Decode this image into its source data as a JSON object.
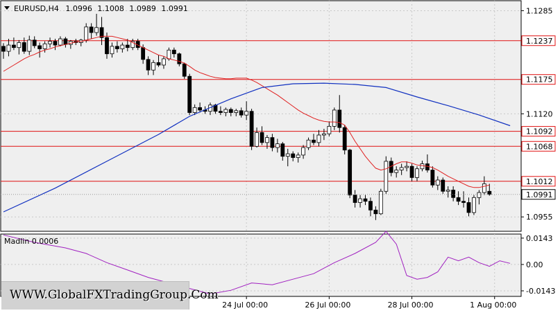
{
  "chart_data": {
    "type": "candlestick",
    "symbol_header": {
      "symbol": "EURUSD,H4",
      "open": "1.0996",
      "high": "1.1008",
      "low": "1.0989",
      "close": "1.0991"
    },
    "price_axis": {
      "ylim": [
        1.0932,
        1.1301
      ],
      "tick_labels": [
        "1.1285",
        "1.1120",
        "1.0955"
      ],
      "tick_values": [
        1.1285,
        1.112,
        1.0955
      ]
    },
    "horizontal_levels": [
      {
        "label": "1.1237",
        "value": 1.1237,
        "color": "#e01010"
      },
      {
        "label": "1.1175",
        "value": 1.1175,
        "color": "#e01010"
      },
      {
        "label": "1.1092",
        "value": 1.1092,
        "color": "#e01010"
      },
      {
        "label": "1.1068",
        "value": 1.1068,
        "color": "#e01010"
      },
      {
        "label": "1.1012",
        "value": 1.1012,
        "color": "#e01010"
      }
    ],
    "current_price": {
      "label": "1.0991",
      "value": 1.0991
    },
    "time_axis": {
      "labels": [
        "24 Jul 00:00",
        "26 Jul 00:00",
        "28 Jul 00:00",
        "1 Aug 00:00"
      ],
      "bar_index": [
        47,
        63,
        79,
        95
      ]
    },
    "candles": [
      [
        1.1228,
        1.1233,
        1.1208,
        1.122
      ],
      [
        1.122,
        1.124,
        1.1212,
        1.123
      ],
      [
        1.123,
        1.1242,
        1.1222,
        1.1226
      ],
      [
        1.1226,
        1.1238,
        1.1215,
        1.1234
      ],
      [
        1.1234,
        1.1242,
        1.1216,
        1.122
      ],
      [
        1.122,
        1.1245,
        1.1214,
        1.1238
      ],
      [
        1.1238,
        1.1244,
        1.1225,
        1.1229
      ],
      [
        1.1229,
        1.1234,
        1.121,
        1.1224
      ],
      [
        1.1224,
        1.1236,
        1.1218,
        1.1232
      ],
      [
        1.1232,
        1.1242,
        1.1226,
        1.1236
      ],
      [
        1.1236,
        1.124,
        1.1222,
        1.123
      ],
      [
        1.123,
        1.1244,
        1.1228,
        1.124
      ],
      [
        1.124,
        1.1243,
        1.1226,
        1.1231
      ],
      [
        1.1231,
        1.1238,
        1.1224,
        1.1236
      ],
      [
        1.1236,
        1.124,
        1.123,
        1.1234
      ],
      [
        1.1234,
        1.124,
        1.1228,
        1.1238
      ],
      [
        1.1238,
        1.1265,
        1.1234,
        1.1259
      ],
      [
        1.1259,
        1.1265,
        1.124,
        1.125
      ],
      [
        1.125,
        1.128,
        1.1245,
        1.1258
      ],
      [
        1.1258,
        1.1275,
        1.123,
        1.1242
      ],
      [
        1.1242,
        1.125,
        1.1208,
        1.1216
      ],
      [
        1.1216,
        1.1234,
        1.121,
        1.1228
      ],
      [
        1.1228,
        1.1236,
        1.1218,
        1.1224
      ],
      [
        1.1224,
        1.1234,
        1.1218,
        1.123
      ],
      [
        1.123,
        1.124,
        1.122,
        1.1226
      ],
      [
        1.1226,
        1.124,
        1.1222,
        1.1236
      ],
      [
        1.1236,
        1.124,
        1.1222,
        1.1226
      ],
      [
        1.1226,
        1.1231,
        1.12,
        1.1207
      ],
      [
        1.1207,
        1.1212,
        1.1182,
        1.119
      ],
      [
        1.119,
        1.1206,
        1.1182,
        1.1202
      ],
      [
        1.1202,
        1.1214,
        1.1195,
        1.1198
      ],
      [
        1.1198,
        1.1212,
        1.1192,
        1.1208
      ],
      [
        1.1208,
        1.1226,
        1.1205,
        1.1222
      ],
      [
        1.1222,
        1.1226,
        1.121,
        1.1216
      ],
      [
        1.1216,
        1.1218,
        1.1196,
        1.12
      ],
      [
        1.12,
        1.1202,
        1.1176,
        1.118
      ],
      [
        1.118,
        1.1184,
        1.1118,
        1.1122
      ],
      [
        1.1122,
        1.1135,
        1.1118,
        1.113
      ],
      [
        1.113,
        1.1138,
        1.1122,
        1.1126
      ],
      [
        1.1126,
        1.1132,
        1.112,
        1.1124
      ],
      [
        1.1124,
        1.1138,
        1.1118,
        1.1134
      ],
      [
        1.1134,
        1.1136,
        1.112,
        1.1124
      ],
      [
        1.1124,
        1.1132,
        1.1118,
        1.1122
      ],
      [
        1.1122,
        1.113,
        1.1116,
        1.1127
      ],
      [
        1.1127,
        1.113,
        1.1116,
        1.1122
      ],
      [
        1.1122,
        1.1128,
        1.1116,
        1.1125
      ],
      [
        1.1125,
        1.113,
        1.1114,
        1.1118
      ],
      [
        1.1118,
        1.114,
        1.111,
        1.1124
      ],
      [
        1.1124,
        1.1128,
        1.1062,
        1.1068
      ],
      [
        1.1068,
        1.1098,
        1.1066,
        1.109
      ],
      [
        1.109,
        1.11,
        1.107,
        1.1074
      ],
      [
        1.1074,
        1.1086,
        1.1064,
        1.1082
      ],
      [
        1.1082,
        1.1088,
        1.106,
        1.1066
      ],
      [
        1.1066,
        1.108,
        1.1058,
        1.1072
      ],
      [
        1.1072,
        1.1075,
        1.1045,
        1.1052
      ],
      [
        1.1052,
        1.1064,
        1.1036,
        1.1056
      ],
      [
        1.1056,
        1.106,
        1.1044,
        1.105
      ],
      [
        1.105,
        1.1058,
        1.1042,
        1.1054
      ],
      [
        1.1054,
        1.107,
        1.1048,
        1.1066
      ],
      [
        1.1066,
        1.1082,
        1.1062,
        1.1078
      ],
      [
        1.1078,
        1.1088,
        1.107,
        1.1074
      ],
      [
        1.1074,
        1.1094,
        1.1068,
        1.1086
      ],
      [
        1.1086,
        1.1096,
        1.1078,
        1.1088
      ],
      [
        1.1088,
        1.1108,
        1.1084,
        1.11
      ],
      [
        1.11,
        1.113,
        1.1094,
        1.1126
      ],
      [
        1.1126,
        1.115,
        1.109,
        1.1098
      ],
      [
        1.1098,
        1.1102,
        1.1055,
        1.1062
      ],
      [
        1.1062,
        1.1064,
        1.0985,
        1.099
      ],
      [
        1.099,
        1.0998,
        1.097,
        1.0978
      ],
      [
        1.0978,
        1.099,
        1.097,
        1.0984
      ],
      [
        1.0984,
        1.099,
        1.0974,
        1.098
      ],
      [
        1.098,
        1.0986,
        1.0956,
        1.0966
      ],
      [
        1.0966,
        1.0972,
        1.095,
        1.096
      ],
      [
        1.096,
        1.1,
        1.0958,
        1.0996
      ],
      [
        1.0996,
        1.1052,
        1.0992,
        1.1044
      ],
      [
        1.1044,
        1.105,
        1.102,
        1.1026
      ],
      [
        1.1026,
        1.1036,
        1.1018,
        1.103
      ],
      [
        1.103,
        1.104,
        1.1022,
        1.1034
      ],
      [
        1.1034,
        1.1044,
        1.1028,
        1.1036
      ],
      [
        1.1036,
        1.104,
        1.1012,
        1.1018
      ],
      [
        1.1018,
        1.1036,
        1.1012,
        1.1032
      ],
      [
        1.1032,
        1.1045,
        1.1028,
        1.104
      ],
      [
        1.104,
        1.1055,
        1.1026,
        1.103
      ],
      [
        1.103,
        1.1036,
        1.1002,
        1.1006
      ],
      [
        1.1006,
        1.102,
        1.0998,
        1.1014
      ],
      [
        1.1014,
        1.1018,
        1.0992,
        1.0996
      ],
      [
        1.0996,
        1.1004,
        1.0986,
        1.0998
      ],
      [
        1.0998,
        1.1004,
        1.098,
        1.0986
      ],
      [
        1.0986,
        1.0996,
        1.0974,
        1.098
      ],
      [
        1.098,
        1.0996,
        1.097,
        1.0978
      ],
      [
        1.0978,
        1.0986,
        1.0956,
        1.0962
      ],
      [
        1.0962,
        1.099,
        1.0958,
        1.0986
      ],
      [
        1.0986,
        1.0998,
        1.0975,
        1.0994
      ],
      [
        1.0994,
        1.102,
        1.099,
        1.1008
      ],
      [
        1.0996,
        1.1008,
        1.0989,
        1.0991
      ]
    ],
    "red_ma": [
      1.1188,
      1.1193,
      1.1198,
      1.1203,
      1.1208,
      1.1212,
      1.1215,
      1.1219,
      1.1222,
      1.1224,
      1.1227,
      1.1229,
      1.1231,
      1.1233,
      1.1235,
      1.1236,
      1.1238,
      1.124,
      1.1242,
      1.1244,
      1.1244,
      1.1244,
      1.1242,
      1.124,
      1.1238,
      1.1234,
      1.123,
      1.1226,
      1.1222,
      1.1218,
      1.1214,
      1.1212,
      1.1208,
      1.1206,
      1.1204,
      1.1201,
      1.1196,
      1.119,
      1.1186,
      1.1183,
      1.118,
      1.1178,
      1.1177,
      1.1176,
      1.1176,
      1.1177,
      1.1177,
      1.1177,
      1.1174,
      1.117,
      1.1165,
      1.116,
      1.1155,
      1.115,
      1.1144,
      1.1138,
      1.1132,
      1.1126,
      1.1121,
      1.1117,
      1.1113,
      1.111,
      1.1108,
      1.1107,
      1.1107,
      1.1106,
      1.1102,
      1.109,
      1.1076,
      1.1064,
      1.1052,
      1.1042,
      1.1033,
      1.103,
      1.1032,
      1.1036,
      1.104,
      1.1043,
      1.1043,
      1.1041,
      1.1038,
      1.1037,
      1.1036,
      1.1034,
      1.103,
      1.1025,
      1.102,
      1.1016,
      1.1012,
      1.1008,
      1.1004,
      1.1002,
      1.1002,
      1.1004,
      1.1006
    ],
    "blue_ma_points": [
      [
        0,
        1.0963
      ],
      [
        10,
        1.1001
      ],
      [
        20,
        1.1044
      ],
      [
        30,
        1.1087
      ],
      [
        36,
        1.1116
      ],
      [
        44,
        1.1144
      ],
      [
        50,
        1.1162
      ],
      [
        56,
        1.1168
      ],
      [
        62,
        1.1169
      ],
      [
        68,
        1.1167
      ],
      [
        74,
        1.1162
      ],
      [
        80,
        1.1147
      ],
      [
        86,
        1.1133
      ],
      [
        92,
        1.1118
      ],
      [
        98,
        1.1101
      ]
    ],
    "indicator": {
      "label": "Madlin 0.0006",
      "ylim": [
        -0.0173,
        0.0165
      ],
      "tick_labels": [
        "0.0143",
        "0.00",
        "-0.0143"
      ],
      "tick_values": [
        0.0143,
        0.0,
        -0.0143
      ],
      "points": [
        [
          0,
          0.016
        ],
        [
          6,
          0.012
        ],
        [
          12,
          0.009
        ],
        [
          16,
          0.006
        ],
        [
          20,
          0.001
        ],
        [
          24,
          -0.003
        ],
        [
          28,
          -0.007
        ],
        [
          32,
          -0.01
        ],
        [
          36,
          -0.013
        ],
        [
          40,
          -0.016
        ],
        [
          44,
          -0.014
        ],
        [
          48,
          -0.01
        ],
        [
          52,
          -0.011
        ],
        [
          56,
          -0.008
        ],
        [
          60,
          -0.005
        ],
        [
          64,
          0.001
        ],
        [
          68,
          0.006
        ],
        [
          72,
          0.012
        ],
        [
          74,
          0.018
        ],
        [
          76,
          0.011
        ],
        [
          78,
          -0.006
        ],
        [
          80,
          -0.008
        ],
        [
          82,
          -0.007
        ],
        [
          84,
          -0.004
        ],
        [
          86,
          0.004
        ],
        [
          88,
          0.002
        ],
        [
          90,
          0.004
        ],
        [
          92,
          0.001
        ],
        [
          94,
          -0.001
        ],
        [
          96,
          0.002
        ],
        [
          98,
          0.0006
        ]
      ]
    },
    "colors": {
      "background": "#ffffff",
      "plot_background": "#efefef",
      "grid": "#c8c8c8",
      "candle_bull": "#ffffff",
      "candle_bear": "#000000",
      "red_ma": "#e02020",
      "blue_ma": "#1030c0",
      "level_line": "#e01010",
      "indicator_line": "#a020c0",
      "price_tag_bg": "#ffffff"
    }
  },
  "watermark": {
    "text": "WWW.GlobalFXTradingGroup.Com"
  }
}
